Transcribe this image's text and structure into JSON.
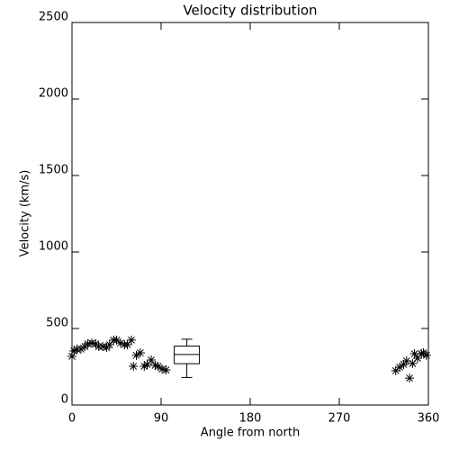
{
  "chart_data": {
    "type": "scatter",
    "title": "Velocity distribution",
    "x_label": "Angle from north",
    "y_label": "Velocity (km/s)",
    "x": [
      0,
      2,
      5,
      9,
      13,
      16,
      20,
      24,
      27,
      31,
      35,
      38,
      42,
      45,
      49,
      53,
      56,
      60,
      62,
      65,
      69,
      73,
      76,
      80,
      84,
      87,
      91,
      95,
      327,
      331,
      335,
      338,
      341,
      344,
      346,
      349,
      353,
      355,
      358
    ],
    "y": [
      318,
      353,
      365,
      365,
      382,
      400,
      405,
      400,
      382,
      382,
      376,
      394,
      424,
      424,
      405,
      394,
      394,
      424,
      253,
      324,
      341,
      253,
      265,
      294,
      259,
      253,
      235,
      229,
      224,
      247,
      265,
      288,
      176,
      271,
      335,
      306,
      335,
      341,
      324
    ],
    "box": {
      "x": 116,
      "min": 180,
      "q1": 270,
      "median": 330,
      "q3": 385,
      "max": 430
    },
    "xlim": [
      0,
      360
    ],
    "xticks": [
      0,
      90,
      180,
      270,
      360
    ],
    "ylim": [
      0,
      2500
    ],
    "yticks": [
      0,
      500,
      1000,
      1500,
      2000,
      2500
    ],
    "color": "#000000"
  }
}
